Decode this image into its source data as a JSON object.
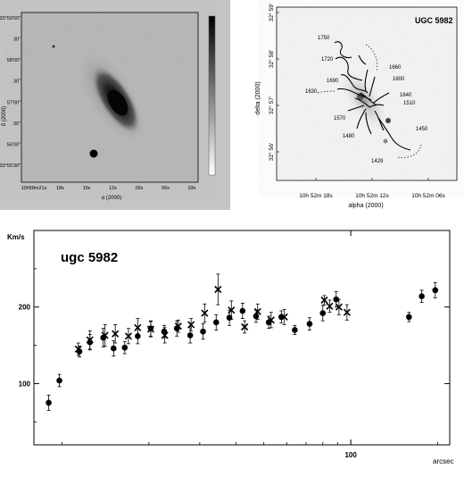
{
  "left_image": {
    "ra_ticks": [
      "10h58m21s",
      "18s",
      "15s",
      "12s",
      "09s",
      "06s",
      "03s"
    ],
    "dec_ticks": [
      "33°59'00\"",
      "30\"",
      "58'00\"",
      "30\"",
      "57'00\"",
      "30\"",
      "56'00\"",
      "33°55'30\""
    ],
    "xlabel": "α (2000)",
    "ylabel": "δ (2000)"
  },
  "right_image": {
    "title": "UGC 5982",
    "contour_labels": [
      "1750",
      "1720",
      "1690",
      "1660",
      "1630",
      "1600",
      "1640",
      "1510",
      "1570",
      "1480",
      "1450",
      "1429"
    ],
    "dec_ticks": [
      "32° 59'",
      "32° 58'",
      "32° 57'",
      "32° 56'"
    ],
    "ra_ticks": [
      "10h 52m 18s",
      "10h 52m 12s",
      "10h 52m 06s"
    ],
    "xlabel": "alpha (2000)",
    "ylabel": "delta (2000)"
  },
  "chart_data": {
    "type": "scatter",
    "title": "ugc 5982",
    "ylabel": "Km/s",
    "xlabel": "arcsec",
    "x_scale": "log",
    "xlim": [
      8,
      220
    ],
    "ylim": [
      20,
      300
    ],
    "y_ticks": [
      100,
      200
    ],
    "x_ticks": [
      100
    ],
    "series": [
      {
        "marker": "filled-circle",
        "points": [
          {
            "x": 9.0,
            "y": 75,
            "err": 10
          },
          {
            "x": 9.8,
            "y": 104,
            "err": 8
          },
          {
            "x": 11.5,
            "y": 142,
            "err": 7
          },
          {
            "x": 12.5,
            "y": 154,
            "err": 10
          },
          {
            "x": 13.9,
            "y": 160,
            "err": 12
          },
          {
            "x": 15.1,
            "y": 146,
            "err": 10
          },
          {
            "x": 16.5,
            "y": 147,
            "err": 8
          },
          {
            "x": 18.3,
            "y": 162,
            "err": 10
          },
          {
            "x": 20.3,
            "y": 172,
            "err": 10
          },
          {
            "x": 22.6,
            "y": 168,
            "err": 8
          },
          {
            "x": 25.0,
            "y": 172,
            "err": 10
          },
          {
            "x": 27.8,
            "y": 163,
            "err": 10
          },
          {
            "x": 30.8,
            "y": 168,
            "err": 10
          },
          {
            "x": 34.2,
            "y": 180,
            "err": 10
          },
          {
            "x": 38.0,
            "y": 186,
            "err": 10
          },
          {
            "x": 42.2,
            "y": 195,
            "err": 10
          },
          {
            "x": 47.0,
            "y": 188,
            "err": 8
          },
          {
            "x": 52.0,
            "y": 180,
            "err": 8
          },
          {
            "x": 57.5,
            "y": 187,
            "err": 8
          },
          {
            "x": 64.0,
            "y": 170,
            "err": 6
          },
          {
            "x": 72.0,
            "y": 178,
            "err": 8
          },
          {
            "x": 80.0,
            "y": 192,
            "err": 10
          },
          {
            "x": 89.0,
            "y": 210,
            "err": 10
          },
          {
            "x": 159.0,
            "y": 187,
            "err": 6
          },
          {
            "x": 176.0,
            "y": 214,
            "err": 8
          },
          {
            "x": 196.0,
            "y": 222,
            "err": 10
          }
        ]
      },
      {
        "marker": "cross",
        "points": [
          {
            "x": 11.4,
            "y": 145,
            "err": 8
          },
          {
            "x": 12.5,
            "y": 157,
            "err": 12
          },
          {
            "x": 14.1,
            "y": 163,
            "err": 14
          },
          {
            "x": 15.3,
            "y": 165,
            "err": 12
          },
          {
            "x": 17.0,
            "y": 162,
            "err": 10
          },
          {
            "x": 18.3,
            "y": 173,
            "err": 12
          },
          {
            "x": 20.3,
            "y": 171,
            "err": 10
          },
          {
            "x": 22.7,
            "y": 163,
            "err": 10
          },
          {
            "x": 25.3,
            "y": 175,
            "err": 8
          },
          {
            "x": 28.0,
            "y": 177,
            "err": 8
          },
          {
            "x": 31.2,
            "y": 192,
            "err": 12
          },
          {
            "x": 34.7,
            "y": 223,
            "err": 20
          },
          {
            "x": 38.6,
            "y": 196,
            "err": 12
          },
          {
            "x": 42.9,
            "y": 174,
            "err": 8
          },
          {
            "x": 47.6,
            "y": 194,
            "err": 10
          },
          {
            "x": 53.0,
            "y": 183,
            "err": 10
          },
          {
            "x": 58.9,
            "y": 187,
            "err": 10
          },
          {
            "x": 81.0,
            "y": 209,
            "err": 6
          },
          {
            "x": 84.5,
            "y": 201,
            "err": 8
          },
          {
            "x": 91.0,
            "y": 200,
            "err": 10
          },
          {
            "x": 97.0,
            "y": 193,
            "err": 10
          }
        ]
      }
    ]
  }
}
